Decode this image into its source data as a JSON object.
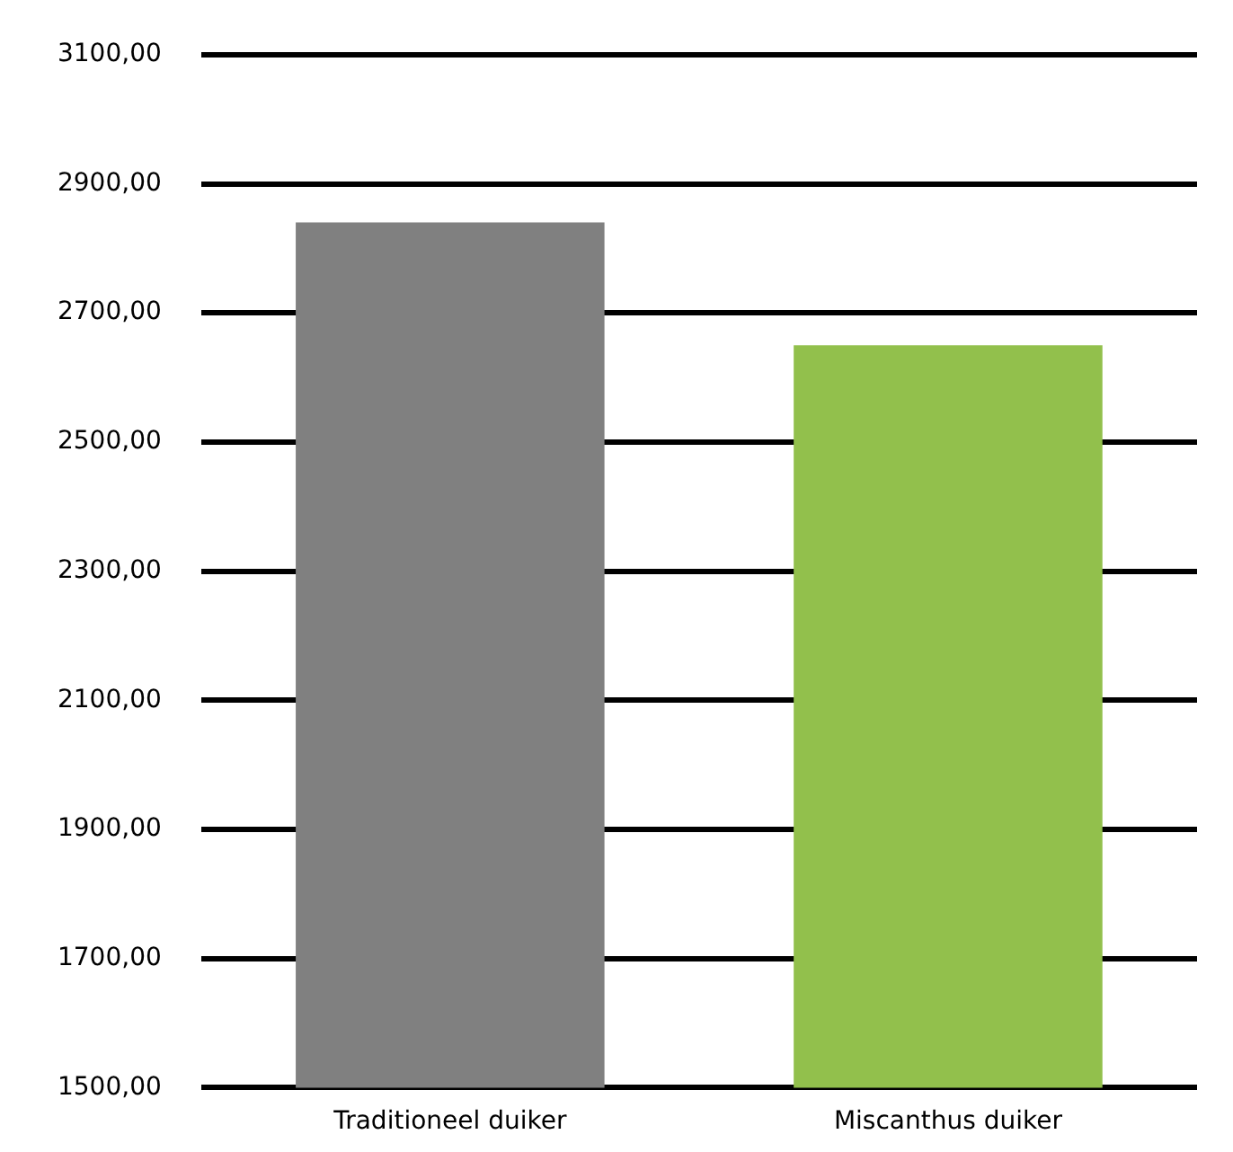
{
  "chart_data": {
    "type": "bar",
    "categories": [
      "Traditioneel duiker",
      "Miscanthus duiker"
    ],
    "values": [
      2840,
      2650
    ],
    "colors": [
      "#808080",
      "#92c04c"
    ],
    "ylim": [
      1500,
      3100
    ],
    "yticks": [
      {
        "value": 1500,
        "label": "1500,00"
      },
      {
        "value": 1700,
        "label": "1700,00"
      },
      {
        "value": 1900,
        "label": "1900,00"
      },
      {
        "value": 2100,
        "label": "2100,00"
      },
      {
        "value": 2300,
        "label": "2300,00"
      },
      {
        "value": 2500,
        "label": "2500,00"
      },
      {
        "value": 2700,
        "label": "2700,00"
      },
      {
        "value": 2900,
        "label": "2900,00"
      },
      {
        "value": 3100,
        "label": "3100,00"
      }
    ],
    "grid": "y"
  }
}
